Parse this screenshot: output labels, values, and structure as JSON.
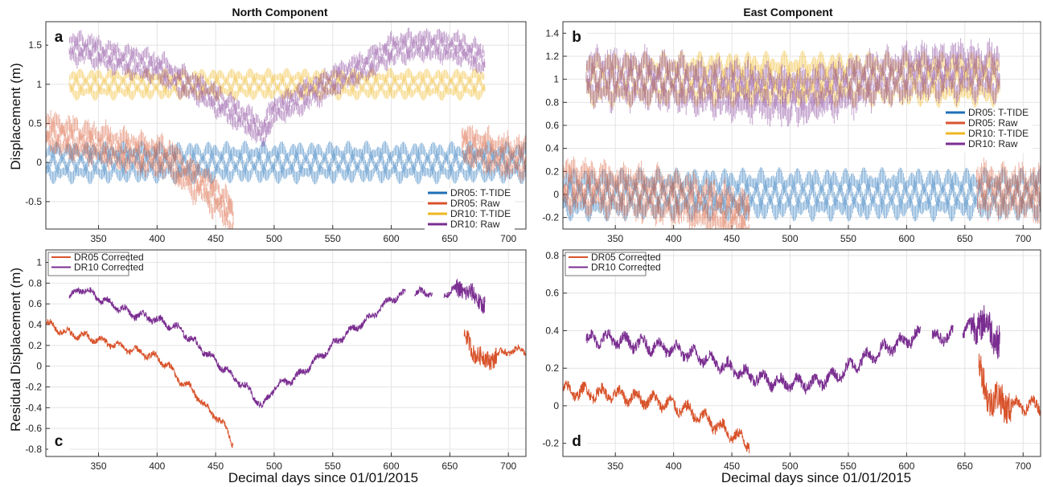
{
  "figure": {
    "xlabel": "Decimal days since 01/01/2015",
    "ylabel_top": "Displacement (m)",
    "ylabel_bottom": "Residual Displacement (m)",
    "north_title": "North Component",
    "east_title": "East Component"
  },
  "colors": {
    "DR05_TTIDE": "#1f6fb8",
    "DR05_Raw": "#d8532b",
    "DR10_TTIDE": "#efb71f",
    "DR10_Raw": "#7a2d90",
    "grid": "#e4e4e4"
  },
  "chart_data": [
    {
      "panel": "a",
      "title": "North Component",
      "type": "line",
      "ylabel": "Displacement (m)",
      "xlim": [
        305,
        715
      ],
      "ylim": [
        -0.85,
        1.8
      ],
      "xticks": [
        350,
        400,
        450,
        500,
        550,
        600,
        650,
        700
      ],
      "yticks": [
        -0.5,
        0,
        0.5,
        1,
        1.5
      ],
      "grid": true,
      "legend_position": "bottom-right",
      "series": [
        {
          "name": "DR05: T-TIDE",
          "color_key": "DR05_TTIDE",
          "x_range": [
            305,
            715
          ],
          "amplitude": 0.2,
          "x": [
            305,
            715
          ],
          "y": [
            0.0,
            0.0
          ]
        },
        {
          "name": "DR05: Raw",
          "color_key": "DR05_Raw",
          "x_range": [
            305,
            715
          ],
          "amplitude": 0.2,
          "gaps": [
            [
              465,
              660
            ]
          ],
          "x": [
            305,
            330,
            360,
            390,
            410,
            420,
            430,
            440,
            450,
            460,
            465,
            660,
            670,
            690,
            715
          ],
          "y": [
            0.4,
            0.3,
            0.2,
            0.1,
            0.05,
            -0.1,
            -0.2,
            -0.3,
            -0.45,
            -0.6,
            -0.7,
            0.25,
            0.2,
            0.1,
            0.05
          ]
        },
        {
          "name": "DR10: T-TIDE",
          "color_key": "DR10_TTIDE",
          "x_range": [
            325,
            680
          ],
          "amplitude": 0.15,
          "x": [
            325,
            680
          ],
          "y": [
            1.0,
            1.0
          ]
        },
        {
          "name": "DR10: Raw",
          "color_key": "DR10_Raw",
          "x_range": [
            325,
            680
          ],
          "amplitude": 0.15,
          "x": [
            325,
            340,
            360,
            380,
            400,
            420,
            440,
            460,
            480,
            490,
            500,
            520,
            540,
            560,
            580,
            600,
            620,
            640,
            660,
            680
          ],
          "y": [
            1.45,
            1.45,
            1.35,
            1.28,
            1.22,
            1.05,
            0.9,
            0.7,
            0.5,
            0.38,
            0.65,
            0.8,
            0.95,
            1.12,
            1.25,
            1.45,
            1.5,
            1.5,
            1.45,
            1.3
          ]
        }
      ]
    },
    {
      "panel": "b",
      "title": "East Component",
      "type": "line",
      "xlim": [
        305,
        715
      ],
      "ylim": [
        -0.3,
        1.5
      ],
      "xticks": [
        350,
        400,
        450,
        500,
        550,
        600,
        650,
        700
      ],
      "yticks": [
        -0.2,
        0,
        0.2,
        0.4,
        0.6,
        0.8,
        1,
        1.2,
        1.4
      ],
      "grid": true,
      "legend_position": "center-right",
      "series": [
        {
          "name": "DR05: T-TIDE",
          "color_key": "DR05_TTIDE",
          "x_range": [
            305,
            715
          ],
          "amplitude": 0.17,
          "x": [
            305,
            715
          ],
          "y": [
            0.0,
            0.0
          ]
        },
        {
          "name": "DR05: Raw",
          "color_key": "DR05_Raw",
          "x_range": [
            305,
            715
          ],
          "amplitude": 0.17,
          "gaps": [
            [
              465,
              660
            ]
          ],
          "x": [
            305,
            340,
            380,
            410,
            430,
            450,
            465,
            660,
            715
          ],
          "y": [
            0.08,
            0.05,
            0.0,
            -0.05,
            -0.1,
            -0.15,
            -0.2,
            0.05,
            0.0
          ]
        },
        {
          "name": "DR10: T-TIDE",
          "color_key": "DR10_TTIDE",
          "x_range": [
            325,
            680
          ],
          "amplitude": 0.18,
          "x": [
            325,
            680
          ],
          "y": [
            1.0,
            1.0
          ]
        },
        {
          "name": "DR10: Raw",
          "color_key": "DR10_Raw",
          "x_range": [
            325,
            680
          ],
          "amplitude": 0.18,
          "x": [
            325,
            380,
            440,
            480,
            510,
            540,
            570,
            600,
            640,
            680
          ],
          "y": [
            1.02,
            1.0,
            0.92,
            0.88,
            0.86,
            0.92,
            1.0,
            1.05,
            1.08,
            1.05
          ]
        }
      ]
    },
    {
      "panel": "c",
      "type": "line",
      "ylabel": "Residual Displacement (m)",
      "xlabel": "Decimal days since 01/01/2015",
      "xlim": [
        305,
        715
      ],
      "ylim": [
        -0.87,
        1.12
      ],
      "xticks": [
        350,
        400,
        450,
        500,
        550,
        600,
        650,
        700
      ],
      "yticks": [
        -0.8,
        -0.6,
        -0.4,
        -0.2,
        0,
        0.2,
        0.4,
        0.6,
        0.8,
        1
      ],
      "grid": true,
      "legend_position": "top-left",
      "series": [
        {
          "name": "DR05 Corrected",
          "color_key": "DR05_Raw",
          "gaps": [
            [
              465,
              662
            ]
          ],
          "x": [
            305,
            320,
            340,
            360,
            380,
            400,
            410,
            420,
            430,
            440,
            450,
            460,
            465,
            662,
            670,
            680,
            690,
            700,
            715
          ],
          "y": [
            0.42,
            0.33,
            0.28,
            0.22,
            0.15,
            0.08,
            0.0,
            -0.15,
            -0.22,
            -0.38,
            -0.48,
            -0.62,
            -0.75,
            0.3,
            0.15,
            0.05,
            0.1,
            0.15,
            0.15
          ]
        },
        {
          "name": "DR10 Corrected",
          "color_key": "DR10_Raw",
          "gaps": [
            [
              612,
              620
            ],
            [
              635,
              645
            ]
          ],
          "x": [
            325,
            335,
            360,
            380,
            400,
            420,
            440,
            460,
            480,
            490,
            500,
            520,
            540,
            560,
            580,
            600,
            612,
            620,
            635,
            645,
            660,
            680
          ],
          "y": [
            0.65,
            0.75,
            0.6,
            0.5,
            0.45,
            0.35,
            0.15,
            -0.05,
            -0.25,
            -0.4,
            -0.2,
            -0.1,
            0.1,
            0.3,
            0.45,
            0.65,
            0.7,
            0.7,
            0.72,
            0.7,
            0.75,
            0.6
          ]
        }
      ]
    },
    {
      "panel": "d",
      "type": "line",
      "xlabel": "Decimal days since 01/01/2015",
      "xlim": [
        305,
        715
      ],
      "ylim": [
        -0.27,
        0.83
      ],
      "xticks": [
        350,
        400,
        450,
        500,
        550,
        600,
        650,
        700
      ],
      "yticks": [
        -0.2,
        0,
        0.2,
        0.4,
        0.6,
        0.8
      ],
      "grid": true,
      "legend_position": "top-left",
      "series": [
        {
          "name": "DR05 Corrected",
          "color_key": "DR05_Raw",
          "gaps": [
            [
              465,
              662
            ]
          ],
          "x": [
            305,
            330,
            360,
            390,
            410,
            430,
            450,
            465,
            662,
            670,
            690,
            715
          ],
          "y": [
            0.08,
            0.07,
            0.05,
            0.02,
            -0.02,
            -0.08,
            -0.15,
            -0.2,
            0.2,
            0.05,
            0.0,
            0.0
          ]
        },
        {
          "name": "DR10 Corrected",
          "color_key": "DR10_Raw",
          "gaps": [
            [
              612,
              622
            ],
            [
              640,
              648
            ]
          ],
          "x": [
            325,
            340,
            370,
            400,
            430,
            460,
            490,
            520,
            540,
            560,
            580,
            600,
            612,
            622,
            640,
            648,
            665,
            680
          ],
          "y": [
            0.35,
            0.36,
            0.33,
            0.3,
            0.25,
            0.17,
            0.12,
            0.12,
            0.16,
            0.24,
            0.3,
            0.35,
            0.38,
            0.36,
            0.38,
            0.4,
            0.45,
            0.35
          ]
        }
      ]
    }
  ]
}
